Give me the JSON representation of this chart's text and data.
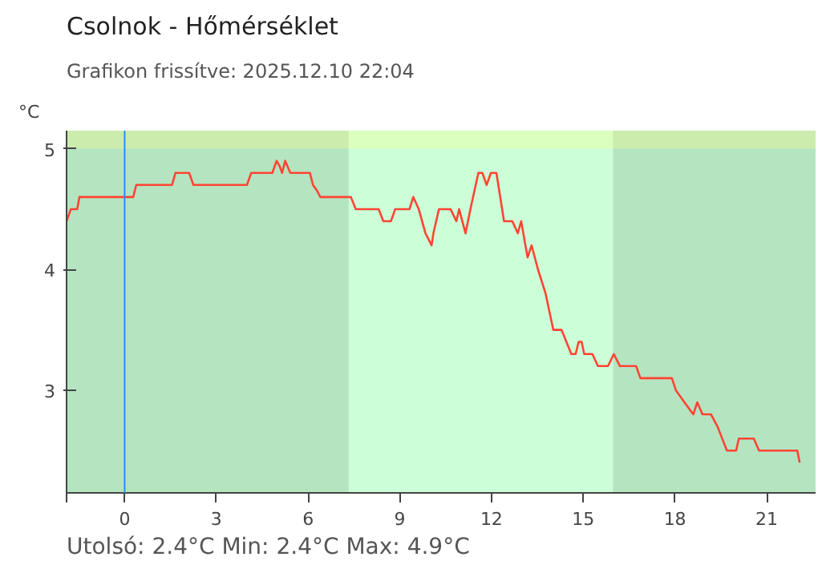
{
  "chart_data": {
    "type": "line",
    "title": "Csolnok - Hőmérséklet",
    "subtitle": "Grafikon frissítve: 2025.12.10 22:04",
    "ylabel": "°C",
    "annotations": [
      "Utolsó: 2.4°C  Min: 2.4°C  Max: 4.9°C"
    ],
    "series": [
      {
        "color": "#ff4433",
        "x": [
          -1.9,
          -1.76,
          -1.55,
          -1.48,
          0.28,
          0.38,
          1.55,
          1.66,
          2.11,
          2.25,
          4.0,
          4.14,
          4.83,
          4.97,
          5.08,
          5.15,
          5.25,
          5.42,
          6.06,
          6.16,
          6.3,
          6.4,
          7.4,
          7.56,
          8.31,
          8.46,
          8.71,
          8.85,
          9.32,
          9.44,
          9.62,
          9.84,
          10.04,
          10.1,
          10.28,
          10.66,
          10.85,
          10.94,
          11.15,
          11.31,
          11.57,
          11.7,
          11.84,
          11.98,
          12.16,
          12.41,
          12.68,
          12.86,
          12.97,
          13.18,
          13.31,
          13.52,
          13.77,
          14.02,
          14.29,
          14.61,
          14.75,
          14.85,
          14.95,
          15.03,
          15.3,
          15.48,
          15.81,
          16.0,
          16.2,
          16.73,
          16.87,
          17.9,
          18.03,
          18.31,
          18.6,
          18.73,
          18.9,
          19.18,
          19.39,
          19.7,
          20.0,
          20.09,
          20.58,
          20.75,
          22.0,
          22.08
        ],
        "values": [
          4.4,
          4.5,
          4.5,
          4.6,
          4.6,
          4.7,
          4.7,
          4.8,
          4.8,
          4.7,
          4.7,
          4.8,
          4.8,
          4.9,
          4.85,
          4.8,
          4.9,
          4.8,
          4.8,
          4.7,
          4.65,
          4.6,
          4.6,
          4.5,
          4.5,
          4.4,
          4.4,
          4.5,
          4.5,
          4.6,
          4.5,
          4.3,
          4.2,
          4.3,
          4.5,
          4.5,
          4.4,
          4.5,
          4.3,
          4.5,
          4.8,
          4.8,
          4.7,
          4.8,
          4.8,
          4.4,
          4.4,
          4.3,
          4.4,
          4.1,
          4.2,
          4.0,
          3.8,
          3.5,
          3.5,
          3.3,
          3.3,
          3.4,
          3.4,
          3.3,
          3.3,
          3.2,
          3.2,
          3.3,
          3.2,
          3.2,
          3.1,
          3.1,
          3.0,
          2.9,
          2.8,
          2.9,
          2.8,
          2.8,
          2.7,
          2.5,
          2.5,
          2.6,
          2.6,
          2.5,
          2.5,
          2.4
        ]
      }
    ],
    "xlim": [
      -1.9,
      22.6
    ],
    "xticks": [
      {
        "value": -1.9,
        "label": null
      },
      0,
      3,
      6,
      9,
      12,
      15,
      18,
      21
    ],
    "ylim": [
      2.15,
      5.15
    ],
    "yticks": [
      3,
      4,
      5
    ],
    "marker": "none",
    "line_style": "solid",
    "ref_lines": [
      {
        "axis": "x",
        "value": 0,
        "color": "#1e90ff"
      }
    ],
    "bands": [
      {
        "axis": "x",
        "from": -1.9,
        "to": 7.33,
        "color": "#b5e4c1"
      },
      {
        "axis": "x",
        "from": 7.33,
        "to": 15.97,
        "color": "#ccffd8"
      },
      {
        "axis": "x",
        "from": 15.97,
        "to": 22.6,
        "color": "#b5e4c1"
      },
      {
        "axis": "y",
        "from": 5,
        "to": 5.15,
        "color": "#ffff80"
      }
    ]
  }
}
